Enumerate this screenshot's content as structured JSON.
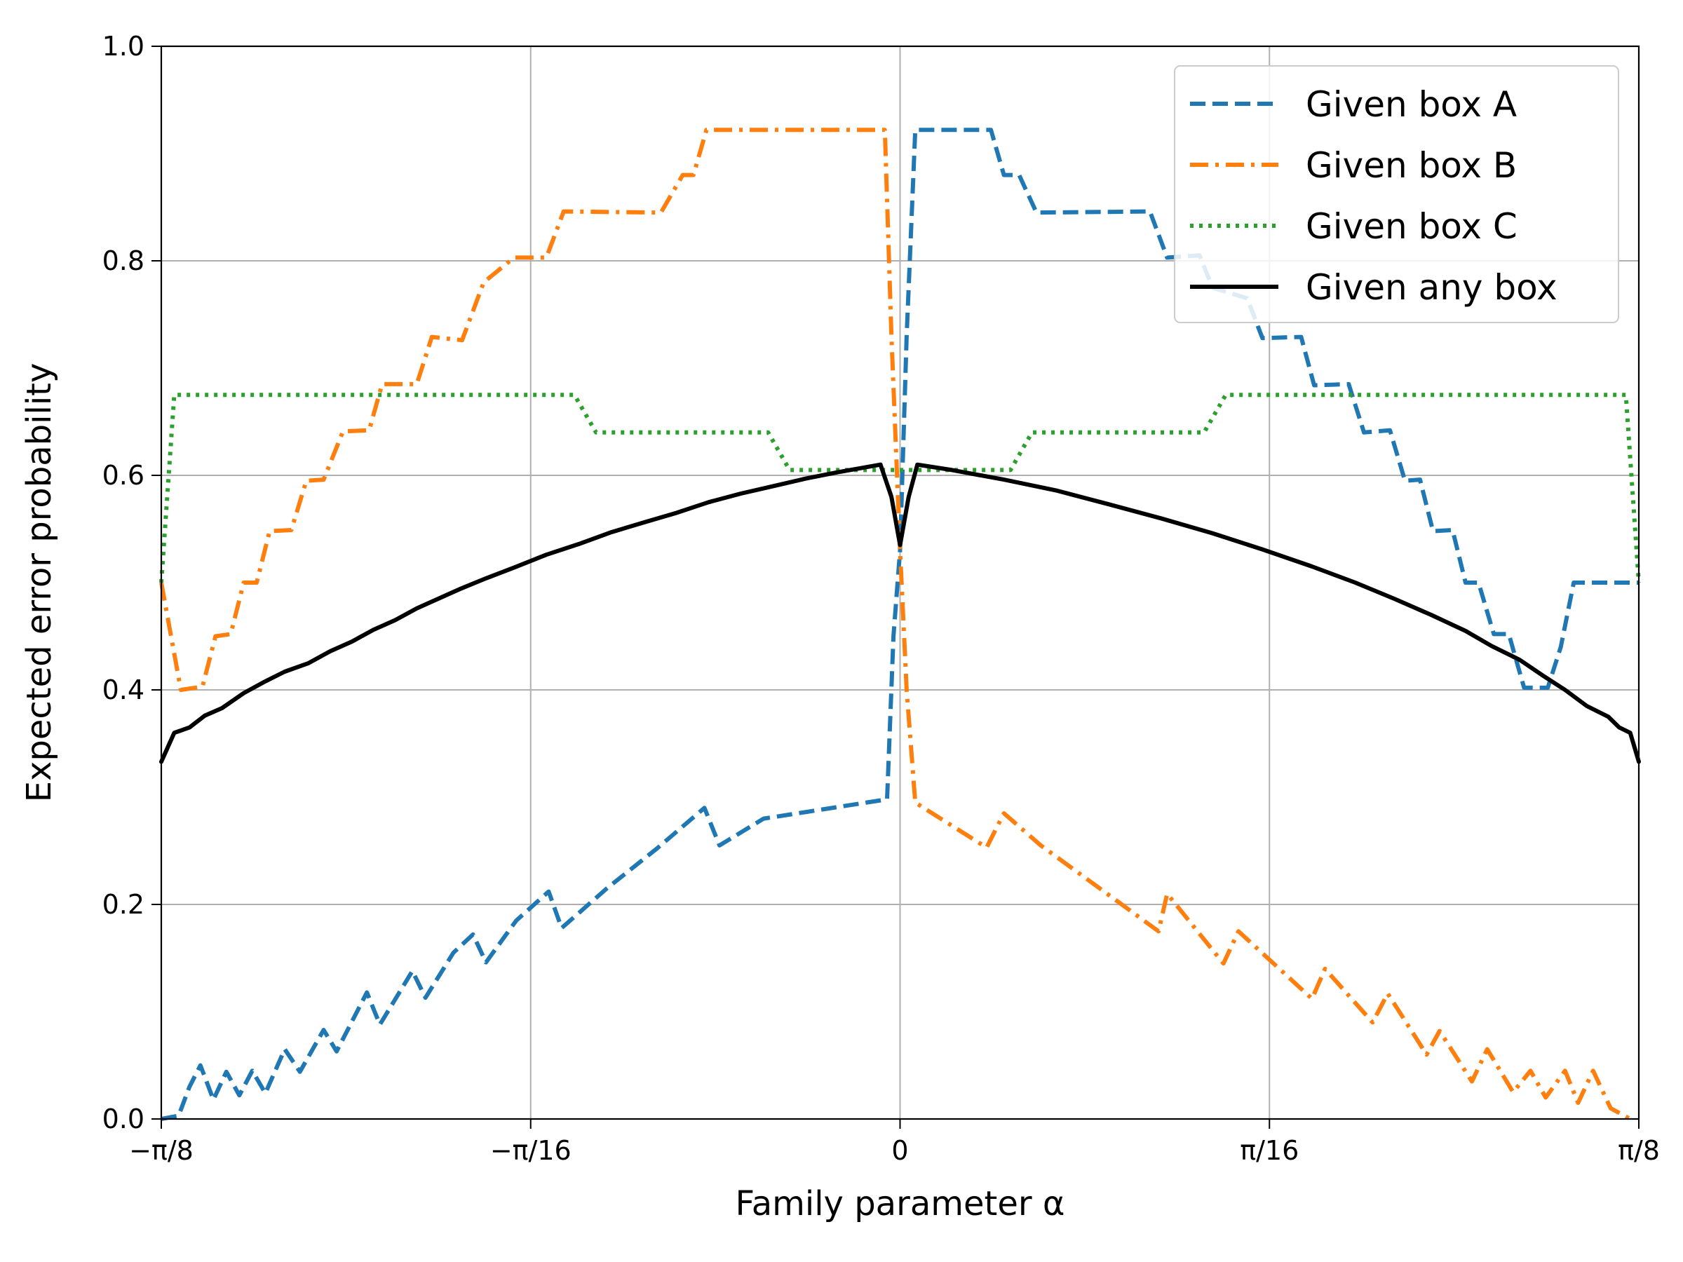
{
  "chart_data": {
    "type": "line",
    "xlabel": "Family parameter α",
    "ylabel": "Expected error probability",
    "xlim": [
      -0.39269908,
      0.39269908
    ],
    "ylim": [
      0.0,
      1.0
    ],
    "xticks": [
      {
        "value": -0.39269908,
        "label": "−π/8"
      },
      {
        "value": -0.19634954,
        "label": "−π/16"
      },
      {
        "value": 0.0,
        "label": "0"
      },
      {
        "value": 0.19634954,
        "label": "π/16"
      },
      {
        "value": 0.39269908,
        "label": "π/8"
      }
    ],
    "yticks": [
      {
        "value": 0.0,
        "label": "0.0"
      },
      {
        "value": 0.2,
        "label": "0.2"
      },
      {
        "value": 0.4,
        "label": "0.4"
      },
      {
        "value": 0.6,
        "label": "0.6"
      },
      {
        "value": 0.8,
        "label": "0.8"
      },
      {
        "value": 1.0,
        "label": "1.0"
      }
    ],
    "grid": true,
    "legend_position": "top-right",
    "series": [
      {
        "name": "Given box A",
        "color": "#1f77b4",
        "style": "dashed",
        "points": [
          [
            -0.3927,
            0.0
          ],
          [
            -0.3835,
            0.003
          ],
          [
            -0.3777,
            0.03
          ],
          [
            -0.3719,
            0.05
          ],
          [
            -0.365,
            0.018
          ],
          [
            -0.3581,
            0.044
          ],
          [
            -0.3512,
            0.022
          ],
          [
            -0.3443,
            0.045
          ],
          [
            -0.3374,
            0.024
          ],
          [
            -0.3271,
            0.065
          ],
          [
            -0.319,
            0.044
          ],
          [
            -0.3064,
            0.083
          ],
          [
            -0.2995,
            0.063
          ],
          [
            -0.2834,
            0.118
          ],
          [
            -0.2765,
            0.088
          ],
          [
            -0.2592,
            0.138
          ],
          [
            -0.2523,
            0.113
          ],
          [
            -0.2374,
            0.155
          ],
          [
            -0.227,
            0.172
          ],
          [
            -0.2201,
            0.146
          ],
          [
            -0.204,
            0.185
          ],
          [
            -0.1868,
            0.212
          ],
          [
            -0.1799,
            0.178
          ],
          [
            -0.1558,
            0.215
          ],
          [
            -0.1293,
            0.252
          ],
          [
            -0.104,
            0.29
          ],
          [
            -0.096,
            0.255
          ],
          [
            -0.0725,
            0.28
          ],
          [
            -0.0069,
            0.298
          ],
          [
            -0.0035,
            0.45
          ],
          [
            0.0,
            0.53
          ],
          [
            0.0035,
            0.73
          ],
          [
            0.0081,
            0.922
          ],
          [
            0.0483,
            0.922
          ],
          [
            0.0552,
            0.88
          ],
          [
            0.0633,
            0.88
          ],
          [
            0.0725,
            0.845
          ],
          [
            0.1328,
            0.846
          ],
          [
            0.142,
            0.803
          ],
          [
            0.1592,
            0.805
          ],
          [
            0.1661,
            0.775
          ],
          [
            0.1845,
            0.765
          ],
          [
            0.1926,
            0.728
          ],
          [
            0.2132,
            0.729
          ],
          [
            0.2201,
            0.684
          ],
          [
            0.2385,
            0.685
          ],
          [
            0.2466,
            0.64
          ],
          [
            0.2604,
            0.642
          ],
          [
            0.2684,
            0.595
          ],
          [
            0.2764,
            0.596
          ],
          [
            0.2833,
            0.548
          ],
          [
            0.2937,
            0.549
          ],
          [
            0.3006,
            0.5
          ],
          [
            0.3075,
            0.5
          ],
          [
            0.3156,
            0.452
          ],
          [
            0.3236,
            0.452
          ],
          [
            0.3317,
            0.402
          ],
          [
            0.3443,
            0.402
          ],
          [
            0.3512,
            0.44
          ],
          [
            0.3581,
            0.5
          ],
          [
            0.3927,
            0.5
          ]
        ]
      },
      {
        "name": "Given box B",
        "color": "#ff7f0e",
        "style": "dashdot",
        "points": [
          [
            -0.3927,
            0.5
          ],
          [
            -0.3823,
            0.4
          ],
          [
            -0.3708,
            0.403
          ],
          [
            -0.3639,
            0.45
          ],
          [
            -0.3558,
            0.452
          ],
          [
            -0.3489,
            0.5
          ],
          [
            -0.342,
            0.5
          ],
          [
            -0.3351,
            0.548
          ],
          [
            -0.3236,
            0.549
          ],
          [
            -0.3156,
            0.595
          ],
          [
            -0.3064,
            0.596
          ],
          [
            -0.2961,
            0.641
          ],
          [
            -0.2822,
            0.642
          ],
          [
            -0.2753,
            0.685
          ],
          [
            -0.2569,
            0.685
          ],
          [
            -0.2489,
            0.729
          ],
          [
            -0.2328,
            0.726
          ],
          [
            -0.2213,
            0.78
          ],
          [
            -0.2052,
            0.803
          ],
          [
            -0.188,
            0.803
          ],
          [
            -0.1788,
            0.846
          ],
          [
            -0.1271,
            0.845
          ],
          [
            -0.1155,
            0.88
          ],
          [
            -0.1098,
            0.88
          ],
          [
            -0.1029,
            0.922
          ],
          [
            -0.0081,
            0.922
          ],
          [
            -0.0046,
            0.73
          ],
          [
            0.0,
            0.53
          ],
          [
            0.0035,
            0.4
          ],
          [
            0.0081,
            0.295
          ],
          [
            0.046,
            0.253
          ],
          [
            0.0552,
            0.285
          ],
          [
            0.0748,
            0.255
          ],
          [
            0.1374,
            0.175
          ],
          [
            0.142,
            0.21
          ],
          [
            0.1719,
            0.145
          ],
          [
            0.1799,
            0.175
          ],
          [
            0.219,
            0.112
          ],
          [
            0.2259,
            0.14
          ],
          [
            0.2512,
            0.09
          ],
          [
            0.2592,
            0.117
          ],
          [
            0.2799,
            0.06
          ],
          [
            0.2868,
            0.082
          ],
          [
            0.304,
            0.035
          ],
          [
            0.3121,
            0.065
          ],
          [
            0.3259,
            0.025
          ],
          [
            0.3351,
            0.045
          ],
          [
            0.3432,
            0.02
          ],
          [
            0.3535,
            0.045
          ],
          [
            0.3604,
            0.015
          ],
          [
            0.3684,
            0.045
          ],
          [
            0.3777,
            0.01
          ],
          [
            0.3881,
            0.0
          ]
        ]
      },
      {
        "name": "Given box C",
        "color": "#2ca02c",
        "style": "dotted",
        "points": [
          [
            -0.3927,
            0.5
          ],
          [
            -0.3858,
            0.675
          ],
          [
            -0.1731,
            0.675
          ],
          [
            -0.1616,
            0.64
          ],
          [
            -0.0701,
            0.64
          ],
          [
            -0.0587,
            0.605
          ],
          [
            0.0587,
            0.605
          ],
          [
            0.0701,
            0.64
          ],
          [
            0.1616,
            0.64
          ],
          [
            0.1731,
            0.675
          ],
          [
            0.3858,
            0.675
          ],
          [
            0.3927,
            0.5
          ]
        ]
      },
      {
        "name": "Given any box",
        "color": "#000000",
        "style": "solid",
        "points": [
          [
            -0.3927,
            0.333
          ],
          [
            -0.3858,
            0.36
          ],
          [
            -0.3777,
            0.365
          ],
          [
            -0.3696,
            0.376
          ],
          [
            -0.3604,
            0.383
          ],
          [
            -0.3489,
            0.397
          ],
          [
            -0.3374,
            0.408
          ],
          [
            -0.3271,
            0.417
          ],
          [
            -0.3144,
            0.425
          ],
          [
            -0.3029,
            0.436
          ],
          [
            -0.2914,
            0.445
          ],
          [
            -0.2799,
            0.456
          ],
          [
            -0.2684,
            0.465
          ],
          [
            -0.2569,
            0.476
          ],
          [
            -0.2455,
            0.485
          ],
          [
            -0.234,
            0.494
          ],
          [
            -0.2201,
            0.504
          ],
          [
            -0.2052,
            0.514
          ],
          [
            -0.188,
            0.526
          ],
          [
            -0.1707,
            0.536
          ],
          [
            -0.1535,
            0.547
          ],
          [
            -0.1363,
            0.556
          ],
          [
            -0.119,
            0.565
          ],
          [
            -0.1018,
            0.575
          ],
          [
            -0.0846,
            0.583
          ],
          [
            -0.0673,
            0.59
          ],
          [
            -0.0501,
            0.597
          ],
          [
            -0.0329,
            0.603
          ],
          [
            -0.0104,
            0.61
          ],
          [
            -0.0046,
            0.58
          ],
          [
            0.0,
            0.535
          ],
          [
            0.0046,
            0.58
          ],
          [
            0.0092,
            0.61
          ],
          [
            0.0276,
            0.605
          ],
          [
            0.0552,
            0.596
          ],
          [
            0.0828,
            0.586
          ],
          [
            0.111,
            0.573
          ],
          [
            0.1385,
            0.56
          ],
          [
            0.1661,
            0.546
          ],
          [
            0.1926,
            0.531
          ],
          [
            0.219,
            0.515
          ],
          [
            0.242,
            0.5
          ],
          [
            0.2627,
            0.485
          ],
          [
            0.2822,
            0.47
          ],
          [
            0.3006,
            0.455
          ],
          [
            0.3144,
            0.441
          ],
          [
            0.3294,
            0.428
          ],
          [
            0.342,
            0.413
          ],
          [
            0.3535,
            0.4
          ],
          [
            0.365,
            0.385
          ],
          [
            0.3765,
            0.375
          ],
          [
            0.3823,
            0.365
          ],
          [
            0.3881,
            0.36
          ],
          [
            0.3927,
            0.333
          ]
        ]
      }
    ]
  }
}
